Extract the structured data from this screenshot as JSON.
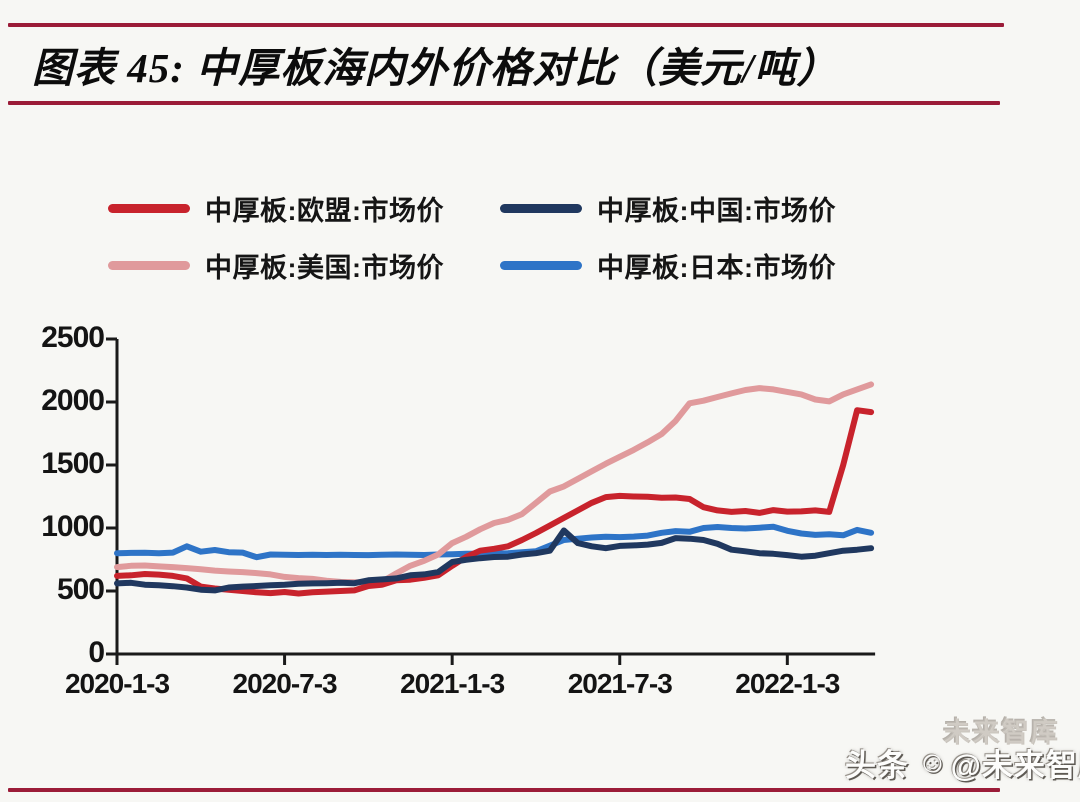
{
  "page": {
    "background": "#f7f7f4",
    "accent_rule_color": "#9b1c38",
    "axis_color": "#1a1a1a"
  },
  "header": {
    "title": "图表 45:  中厚板海内外价格对比（美元/吨）"
  },
  "legend": {
    "items": [
      {
        "label": "中厚板:欧盟:市场价",
        "color": "#c8232c"
      },
      {
        "label": "中厚板:中国:市场价",
        "color": "#20385f"
      },
      {
        "label": "中厚板:美国:市场价",
        "color": "#e09a9c"
      },
      {
        "label": "中厚板:日本:市场价",
        "color": "#2e74c7"
      }
    ]
  },
  "chart_data": {
    "type": "line",
    "title": "中厚板海内外价格对比",
    "unit": "美元/吨",
    "xlabel": "",
    "ylabel": "",
    "ylim": [
      0,
      2500
    ],
    "y_ticks": [
      0,
      500,
      1000,
      1500,
      2000,
      2500
    ],
    "xlim_months": [
      0,
      27
    ],
    "x_unit": "months since 2020-1-3",
    "x_ticks": [
      {
        "label": "2020-1-3",
        "t": 0
      },
      {
        "label": "2020-7-3",
        "t": 6
      },
      {
        "label": "2021-1-3",
        "t": 12
      },
      {
        "label": "2021-7-3",
        "t": 18
      },
      {
        "label": "2022-1-3",
        "t": 24
      }
    ],
    "x_months": [
      0,
      0.5,
      1,
      1.5,
      2,
      2.5,
      3,
      3.5,
      4,
      4.5,
      5,
      5.5,
      6,
      6.5,
      7,
      7.5,
      8,
      8.5,
      9,
      9.5,
      10,
      10.5,
      11,
      11.5,
      12,
      12.5,
      13,
      13.5,
      14,
      14.5,
      15,
      15.5,
      16,
      16.5,
      17,
      17.5,
      18,
      18.5,
      19,
      19.5,
      20,
      20.5,
      21,
      21.5,
      22,
      22.5,
      23,
      23.5,
      24,
      24.5,
      25,
      25.5,
      26,
      26.5,
      27
    ],
    "series": [
      {
        "name": "中厚板:日本:市场价",
        "color": "#2e74c7",
        "values": [
          800,
          802,
          803,
          800,
          805,
          855,
          812,
          825,
          808,
          805,
          768,
          790,
          788,
          786,
          788,
          786,
          788,
          786,
          785,
          788,
          790,
          788,
          786,
          790,
          792,
          795,
          795,
          798,
          800,
          808,
          815,
          860,
          905,
          915,
          925,
          930,
          928,
          932,
          940,
          962,
          975,
          970,
          1000,
          1008,
          1000,
          996,
          1002,
          1010,
          978,
          956,
          945,
          950,
          942,
          985,
          962
        ]
      },
      {
        "name": "中厚板:美国:市场价",
        "color": "#e09a9c",
        "values": [
          690,
          700,
          702,
          695,
          690,
          682,
          672,
          662,
          655,
          650,
          642,
          632,
          612,
          602,
          596,
          582,
          572,
          570,
          568,
          575,
          640,
          700,
          740,
          790,
          880,
          930,
          990,
          1040,
          1065,
          1110,
          1200,
          1290,
          1330,
          1390,
          1450,
          1510,
          1565,
          1620,
          1680,
          1745,
          1850,
          1990,
          2010,
          2040,
          2068,
          2095,
          2110,
          2100,
          2080,
          2060,
          2020,
          2005,
          2060,
          2100,
          2140
        ]
      },
      {
        "name": "中厚板:欧盟:市场价",
        "color": "#c8232c",
        "values": [
          620,
          625,
          635,
          630,
          620,
          600,
          535,
          520,
          510,
          500,
          490,
          483,
          492,
          480,
          490,
          495,
          500,
          505,
          540,
          550,
          585,
          590,
          605,
          625,
          700,
          770,
          820,
          835,
          855,
          905,
          960,
          1020,
          1080,
          1140,
          1200,
          1245,
          1255,
          1250,
          1248,
          1240,
          1242,
          1230,
          1165,
          1140,
          1128,
          1135,
          1120,
          1142,
          1130,
          1132,
          1140,
          1128,
          1500,
          1935,
          1920
        ]
      },
      {
        "name": "中厚板:中国:市场价",
        "color": "#20385f",
        "values": [
          560,
          565,
          550,
          545,
          538,
          528,
          510,
          505,
          528,
          535,
          540,
          545,
          550,
          558,
          560,
          562,
          565,
          562,
          585,
          592,
          600,
          625,
          632,
          650,
          730,
          748,
          760,
          770,
          772,
          790,
          800,
          820,
          980,
          880,
          855,
          840,
          858,
          862,
          868,
          882,
          920,
          915,
          905,
          875,
          828,
          815,
          800,
          795,
          785,
          772,
          780,
          800,
          820,
          828,
          840
        ]
      }
    ],
    "legend_position": "top",
    "grid": false
  },
  "watermark": {
    "prefix": "头条",
    "handle": "@未来智库",
    "ghost_text": "未来智库",
    "icon": "smiley-face-icon"
  }
}
